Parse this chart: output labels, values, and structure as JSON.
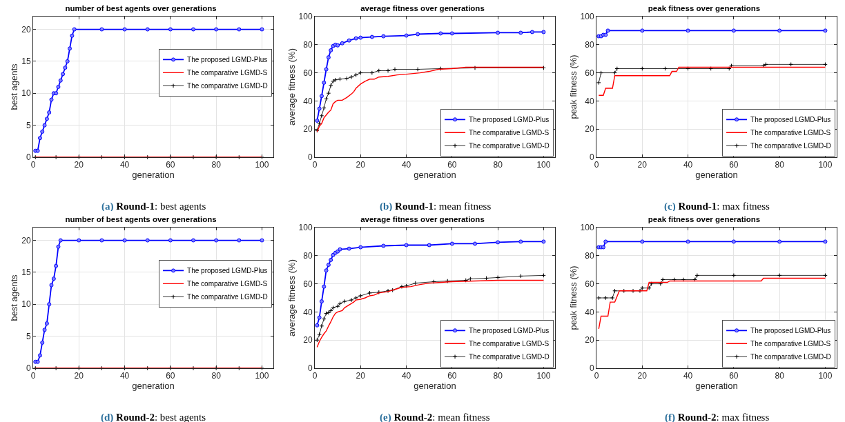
{
  "chart_data": [
    {
      "type": "line",
      "title": "number of best agents over generations",
      "xlabel": "generation",
      "ylabel": "best agents",
      "annotations": [
        "(a) Round-1: best agents"
      ],
      "xlim": [
        0,
        105
      ],
      "xticks": [
        0,
        20,
        40,
        60,
        80,
        100
      ],
      "ylim": [
        0,
        22
      ],
      "yticks": [
        0,
        5,
        10,
        15,
        20
      ],
      "grid": true,
      "legend": "right",
      "line_style": "solid",
      "series": [
        {
          "name": "The proposed LGMD-Plus",
          "color": "#0000ff",
          "marker": "circle",
          "x": [
            1,
            2,
            3,
            4,
            5,
            6,
            7,
            8,
            9,
            10,
            11,
            12,
            13,
            14,
            15,
            16,
            17,
            18,
            30,
            40,
            50,
            60,
            70,
            80,
            90,
            100
          ],
          "values": [
            1,
            1,
            3,
            4,
            5,
            6,
            7,
            9,
            10,
            10,
            11,
            12,
            13,
            14,
            15,
            17,
            19,
            20,
            20,
            20,
            20,
            20,
            20,
            20,
            20,
            20
          ]
        },
        {
          "name": "The comparative LGMD-S",
          "color": "#ff0000",
          "marker": "none",
          "x": [
            1,
            100
          ],
          "values": [
            0,
            0
          ]
        },
        {
          "name": "The comparative LGMD-D",
          "color": "#000000",
          "marker": "cross",
          "x": [
            1,
            10,
            20,
            30,
            40,
            50,
            60,
            70,
            80,
            90,
            100
          ],
          "values": [
            0,
            0,
            0,
            0,
            0,
            0,
            0,
            0,
            0,
            0,
            0
          ]
        }
      ]
    },
    {
      "type": "line",
      "title": "average fitness over generations",
      "xlabel": "generation",
      "ylabel": "average fitness (%)",
      "annotations": [
        "(b) Round-1: mean fitness"
      ],
      "xlim": [
        0,
        105
      ],
      "xticks": [
        0,
        20,
        40,
        60,
        80,
        100
      ],
      "ylim": [
        0,
        100
      ],
      "yticks": [
        0,
        20,
        40,
        60,
        80,
        100
      ],
      "grid": true,
      "legend": "bottom right",
      "line_style": "solid",
      "series": [
        {
          "name": "The proposed LGMD-Plus",
          "color": "#0000ff",
          "marker": "circle",
          "x": [
            1,
            2,
            3,
            4,
            5,
            6,
            7,
            8,
            9,
            10,
            12,
            15,
            18,
            20,
            25,
            30,
            40,
            45,
            55,
            60,
            80,
            90,
            95,
            100
          ],
          "values": [
            26,
            34.5,
            43.5,
            53,
            62.5,
            71,
            76,
            79,
            80,
            79.5,
            81,
            83,
            84.5,
            85,
            85.5,
            86,
            86.5,
            87.5,
            88,
            88,
            88.5,
            88.5,
            89,
            89
          ]
        },
        {
          "name": "The comparative LGMD-S",
          "color": "#ff0000",
          "marker": "none",
          "x": [
            1,
            2,
            3,
            4,
            5,
            6,
            7,
            8,
            9,
            10,
            12,
            14,
            16,
            17,
            18,
            20,
            22,
            24,
            26,
            28,
            32,
            36,
            40,
            46,
            50,
            54,
            60,
            66,
            80,
            100
          ],
          "values": [
            18,
            22,
            24,
            28,
            30,
            32,
            33.5,
            38,
            39.5,
            40.5,
            40.5,
            42.5,
            45,
            46.5,
            49,
            52,
            54,
            55.5,
            55.5,
            57,
            57.5,
            58.5,
            59,
            60,
            61,
            62.5,
            63,
            64,
            64,
            64
          ]
        },
        {
          "name": "The comparative LGMD-D",
          "color": "#000000",
          "marker": "cross",
          "x": [
            1,
            2,
            3,
            4,
            5,
            6,
            7,
            8,
            9,
            11,
            14,
            16,
            18,
            20,
            25,
            28,
            32,
            35,
            45,
            55,
            70,
            100
          ],
          "values": [
            19,
            24,
            29.5,
            35,
            41.5,
            45.5,
            51,
            54,
            55,
            55.5,
            56,
            57,
            58.5,
            60,
            60,
            61.5,
            61.5,
            62.5,
            62.5,
            63,
            63.5,
            63.5
          ]
        }
      ]
    },
    {
      "type": "line",
      "title": "peak fitness over generations",
      "xlabel": "generation",
      "ylabel": "peak fitness (%)",
      "annotations": [
        "(c) Round-1: max fitness"
      ],
      "xlim": [
        0,
        105
      ],
      "xticks": [
        0,
        20,
        40,
        60,
        80,
        100
      ],
      "ylim": [
        0,
        100
      ],
      "yticks": [
        0,
        20,
        40,
        60,
        80,
        100
      ],
      "grid": true,
      "legend": "bottom right",
      "line_style": "solid",
      "series": [
        {
          "name": "The proposed LGMD-Plus",
          "color": "#0000ff",
          "marker": "circle",
          "x": [
            1,
            2,
            3,
            4,
            5,
            20,
            40,
            60,
            80,
            100
          ],
          "values": [
            86,
            86,
            87,
            87,
            90,
            90,
            90,
            90,
            90,
            90
          ]
        },
        {
          "name": "The comparative LGMD-S",
          "color": "#ff0000",
          "marker": "none",
          "x": [
            1,
            3,
            4,
            7,
            8,
            32,
            33,
            35,
            36,
            100
          ],
          "values": [
            44,
            44,
            49,
            49,
            58,
            58,
            61,
            61,
            64,
            64
          ]
        },
        {
          "name": "The comparative LGMD-D",
          "color": "#000000",
          "marker": "cross",
          "x": [
            1,
            2,
            8,
            9,
            20,
            30,
            40,
            50,
            58,
            59,
            73,
            74,
            85,
            100
          ],
          "values": [
            53,
            60,
            60,
            63,
            63,
            63,
            63,
            63,
            63,
            65,
            65,
            66,
            66,
            66
          ]
        }
      ]
    },
    {
      "type": "line",
      "title": "number of best agents over generations",
      "xlabel": "generation",
      "ylabel": "best agents",
      "annotations": [
        "(d) Round-2: best agents"
      ],
      "xlim": [
        0,
        105
      ],
      "xticks": [
        0,
        20,
        40,
        60,
        80,
        100
      ],
      "ylim": [
        0,
        22
      ],
      "yticks": [
        0,
        5,
        10,
        15,
        20
      ],
      "grid": true,
      "legend": "right",
      "line_style": "solid",
      "series": [
        {
          "name": "The proposed LGMD-Plus",
          "color": "#0000ff",
          "marker": "circle",
          "x": [
            1,
            2,
            3,
            4,
            5,
            6,
            7,
            8,
            9,
            10,
            11,
            12,
            20,
            30,
            40,
            50,
            60,
            70,
            80,
            90,
            100
          ],
          "values": [
            1,
            1,
            2,
            4,
            6,
            7,
            10,
            13,
            14,
            16,
            19,
            20,
            20,
            20,
            20,
            20,
            20,
            20,
            20,
            20,
            20
          ]
        },
        {
          "name": "The comparative LGMD-S",
          "color": "#ff0000",
          "marker": "none",
          "x": [
            1,
            100
          ],
          "values": [
            0,
            0
          ]
        },
        {
          "name": "The comparative LGMD-D",
          "color": "#000000",
          "marker": "cross",
          "x": [
            1,
            10,
            20,
            30,
            40,
            50,
            60,
            70,
            80,
            90,
            100
          ],
          "values": [
            0,
            0,
            0,
            0,
            0,
            0,
            0,
            0,
            0,
            0,
            0
          ]
        }
      ]
    },
    {
      "type": "line",
      "title": "average fitness over generations",
      "xlabel": "generation",
      "ylabel": "average fitness (%)",
      "annotations": [
        "(e) Round-2: mean fitness"
      ],
      "xlim": [
        0,
        105
      ],
      "xticks": [
        0,
        20,
        40,
        60,
        80,
        100
      ],
      "ylim": [
        0,
        100
      ],
      "yticks": [
        0,
        20,
        40,
        60,
        80,
        100
      ],
      "grid": true,
      "legend": "bottom right",
      "line_style": "solid",
      "series": [
        {
          "name": "The proposed LGMD-Plus",
          "color": "#0000ff",
          "marker": "circle",
          "x": [
            1,
            2,
            3,
            4,
            5,
            6,
            7,
            8,
            9,
            10,
            11,
            15,
            20,
            30,
            40,
            50,
            60,
            70,
            80,
            90,
            100
          ],
          "values": [
            30.5,
            36,
            47.5,
            58,
            69.5,
            73.5,
            77,
            80.5,
            82,
            83,
            84.5,
            85,
            86,
            87,
            87.5,
            87.5,
            88.5,
            88.5,
            89.5,
            90,
            90
          ]
        },
        {
          "name": "The comparative LGMD-S",
          "color": "#ff0000",
          "marker": "none",
          "x": [
            1,
            2,
            3,
            4,
            5,
            6,
            7,
            8,
            9,
            10,
            11,
            12,
            13,
            15,
            17,
            18,
            20,
            22,
            24,
            26,
            28,
            32,
            36,
            38,
            42,
            46,
            50,
            55,
            60,
            70,
            80,
            100
          ],
          "values": [
            15,
            19,
            22,
            24.5,
            26.5,
            30,
            33,
            36.5,
            39,
            40,
            40.5,
            41,
            43,
            45,
            47,
            48.5,
            49,
            50,
            51.5,
            52,
            53.5,
            54.5,
            56.5,
            57.5,
            58,
            59.5,
            60.5,
            61,
            61.5,
            62,
            62.5,
            62.5
          ]
        },
        {
          "name": "The comparative LGMD-D",
          "color": "#000000",
          "marker": "cross",
          "x": [
            1,
            2,
            3,
            4,
            5,
            6,
            7,
            8,
            10,
            11,
            13,
            16,
            18,
            20,
            24,
            28,
            32,
            34,
            38,
            40,
            44,
            52,
            58,
            66,
            68,
            75,
            80,
            90,
            100
          ],
          "values": [
            20,
            24,
            30,
            35,
            39,
            39.5,
            41,
            43,
            44,
            46,
            47.5,
            48.5,
            50,
            51.5,
            53.5,
            54,
            55,
            55.5,
            58,
            58.5,
            60.5,
            61.5,
            62,
            62.5,
            63.5,
            64,
            64.5,
            65.5,
            66
          ]
        }
      ]
    },
    {
      "type": "line",
      "title": "peak fitness over generations",
      "xlabel": "generation",
      "ylabel": "peak fitness (%)",
      "annotations": [
        "(f) Round-2: max fitness"
      ],
      "xlim": [
        0,
        105
      ],
      "xticks": [
        0,
        20,
        40,
        60,
        80,
        100
      ],
      "ylim": [
        0,
        100
      ],
      "yticks": [
        0,
        20,
        40,
        60,
        80,
        100
      ],
      "grid": true,
      "legend": "bottom right",
      "line_style": "solid",
      "series": [
        {
          "name": "The proposed LGMD-Plus",
          "color": "#0000ff",
          "marker": "circle",
          "x": [
            1,
            2,
            3,
            4,
            20,
            40,
            60,
            80,
            100
          ],
          "values": [
            86,
            86,
            86,
            90,
            90,
            90,
            90,
            90,
            90
          ]
        },
        {
          "name": "The comparative LGMD-S",
          "color": "#ff0000",
          "marker": "none",
          "x": [
            1,
            2,
            5,
            6,
            8,
            10,
            22,
            23,
            31,
            32,
            72,
            73,
            100
          ],
          "values": [
            28,
            37,
            37,
            47,
            47,
            55,
            55,
            61,
            61,
            62,
            62,
            64,
            64
          ]
        },
        {
          "name": "The comparative LGMD-D",
          "color": "#000000",
          "marker": "cross",
          "x": [
            1,
            4,
            7,
            8,
            12,
            16,
            19,
            20,
            23,
            24,
            28,
            29,
            34,
            38,
            43,
            44,
            60,
            80,
            100
          ],
          "values": [
            50,
            50,
            50,
            55,
            55,
            55,
            55,
            57,
            57,
            60,
            60,
            63,
            63,
            63,
            63,
            66,
            66,
            66,
            66
          ]
        }
      ]
    }
  ]
}
